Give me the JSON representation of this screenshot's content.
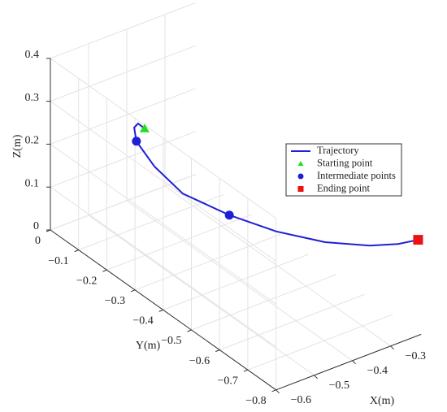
{
  "chart_data": {
    "type": "line3d",
    "xlabel": "X(m)",
    "ylabel": "Y(m)",
    "zlabel": "Z(m)",
    "xlim": [
      -0.6,
      -0.22
    ],
    "ylim": [
      -0.8,
      0
    ],
    "zlim": [
      0,
      0.4
    ],
    "xticks": [
      {
        "value": -0.6,
        "label": "−0.6"
      },
      {
        "value": -0.5,
        "label": "−0.5"
      },
      {
        "value": -0.4,
        "label": "−0.4"
      },
      {
        "value": -0.3,
        "label": "−0.3"
      }
    ],
    "yticks": [
      0,
      {
        "value": -0.1,
        "label": "−0.1"
      },
      {
        "value": -0.2,
        "label": "−0.2"
      },
      {
        "value": -0.3,
        "label": "−0.3"
      },
      {
        "value": -0.4,
        "label": "−0.4"
      },
      {
        "value": -0.5,
        "label": "−0.5"
      },
      {
        "value": -0.6,
        "label": "−0.6"
      },
      {
        "value": -0.7,
        "label": "−0.7"
      },
      {
        "value": -0.8,
        "label": "−0.8"
      }
    ],
    "zticks": [
      0,
      0.1,
      0.2,
      0.3,
      0.4
    ],
    "grid": true,
    "legend": "center right",
    "series": [
      {
        "name": "Trajectory",
        "marker": "line",
        "color": "#1f1fd6",
        "x": [
          -0.6,
          -0.6,
          -0.6,
          -0.6,
          -0.6,
          -0.55,
          -0.5,
          -0.45,
          -0.4,
          -0.33,
          -0.28,
          -0.228
        ],
        "y": [
          -0.334,
          -0.311,
          -0.297,
          -0.305,
          -0.369,
          -0.402,
          -0.499,
          -0.598,
          -0.703,
          -0.767,
          -0.8,
          -0.8
        ],
        "z": [
          0.392,
          0.393,
          0.377,
          0.349,
          0.32,
          0.255,
          0.233,
          0.224,
          0.231,
          0.229,
          0.231,
          0.223
        ]
      },
      {
        "name": "Starting point",
        "marker": "triangle",
        "color": "#22dd22",
        "x": [
          -0.6
        ],
        "y": [
          -0.334
        ],
        "z": [
          0.392
        ]
      },
      {
        "name": "Intermediate points",
        "marker": "circle",
        "color": "#1f1fd6",
        "x": [
          -0.6,
          -0.5
        ],
        "y": [
          -0.305,
          -0.499
        ],
        "z": [
          0.349,
          0.233
        ]
      },
      {
        "name": "Ending point",
        "marker": "square",
        "color": "#ee1111",
        "x": [
          -0.228
        ],
        "y": [
          -0.8
        ],
        "z": [
          0.223
        ]
      }
    ]
  }
}
